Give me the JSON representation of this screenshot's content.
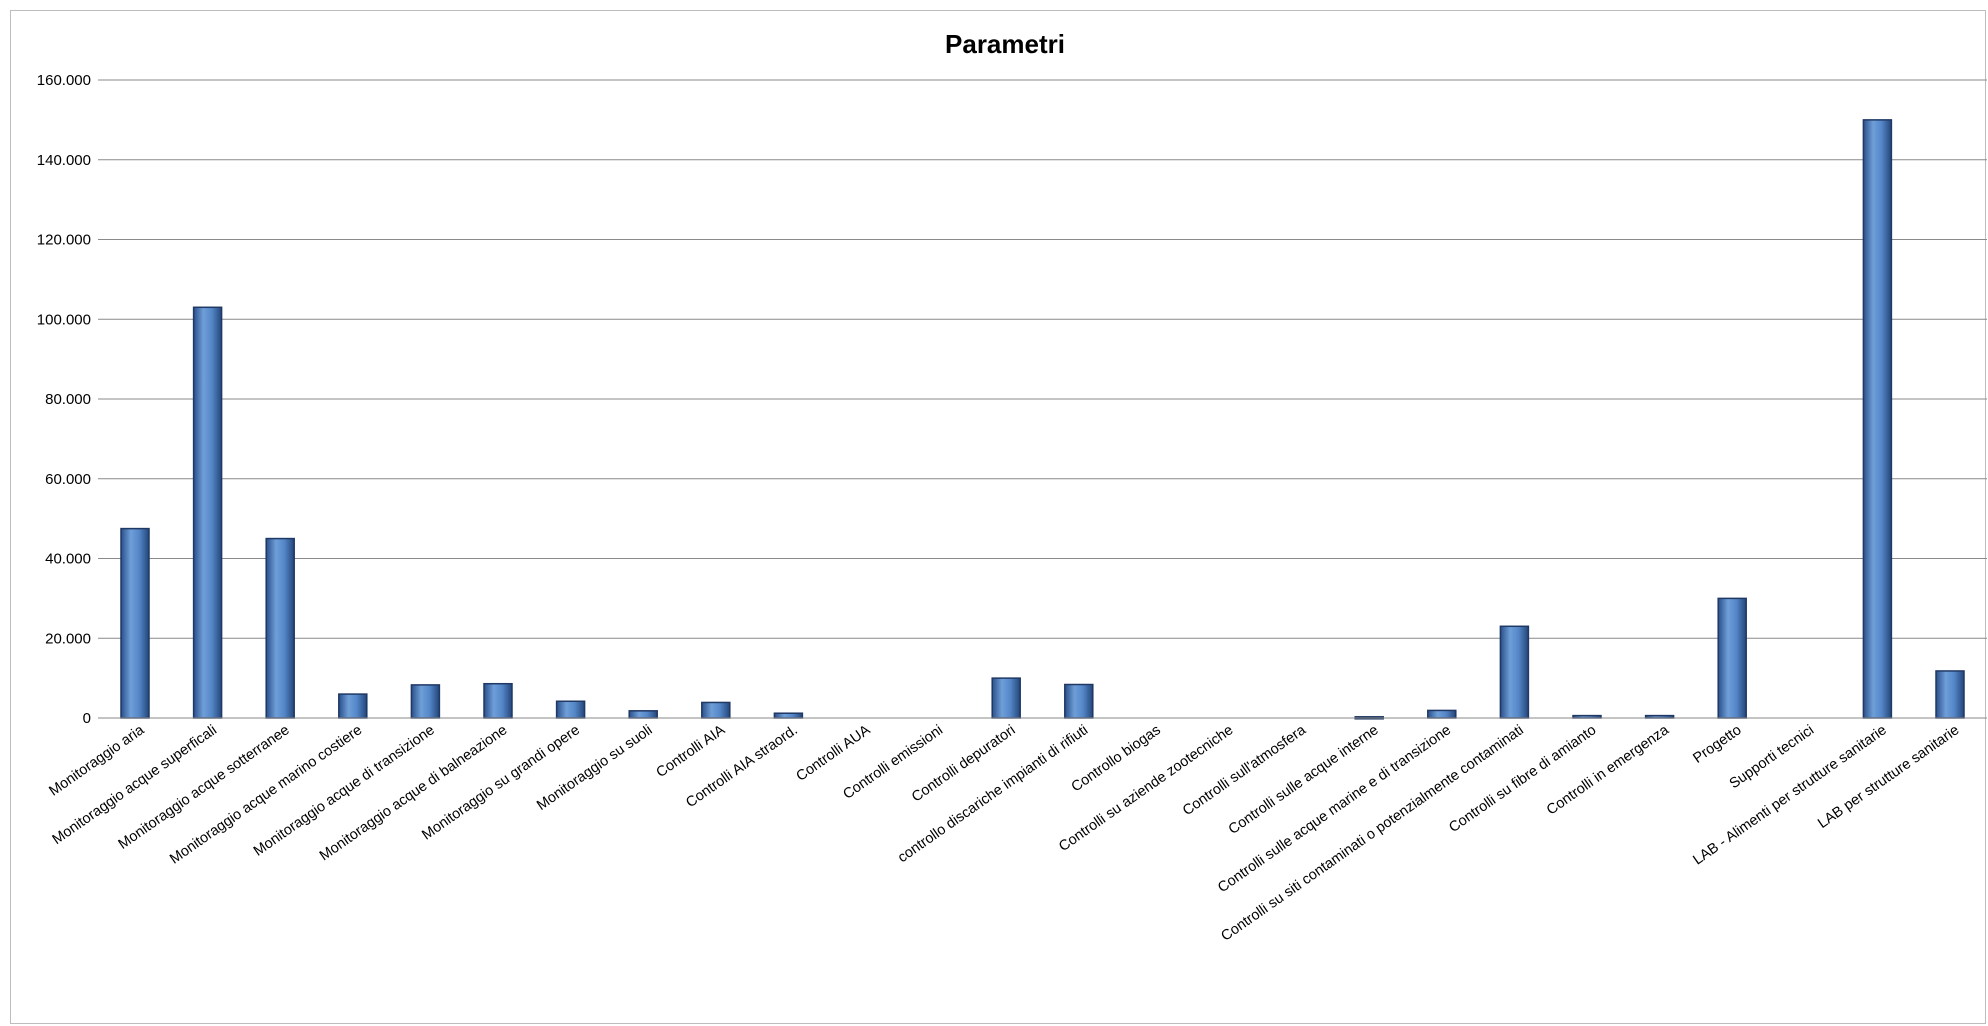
{
  "chart_data": {
    "type": "bar",
    "title": "Parametri",
    "xlabel": "",
    "ylabel": "",
    "ylim": [
      0,
      160000
    ],
    "y_ticks": [
      0,
      20000,
      40000,
      60000,
      80000,
      100000,
      120000,
      140000,
      160000
    ],
    "y_tick_labels": [
      "0",
      "20.000",
      "40.000",
      "60.000",
      "80.000",
      "100.000",
      "120.000",
      "140.000",
      "160.000"
    ],
    "grid": true,
    "legend": "none",
    "bar_color": "#4a7cc0",
    "bar_edge_color": "#1f3864",
    "categories": [
      "Monitoraggio aria",
      "Monitoraggio acque superficali",
      "Monitoraggio acque sotterranee",
      "Monitoraggio acque marino costiere",
      "Monitoraggio acque di transizione",
      "Monitoraggio acque di balneazione",
      "Monitoraggio su grandi opere",
      "Monitoraggio su suoli",
      "Controlli AIA",
      "Controlli AIA straord.",
      "Controlli AUA",
      "Controlli emissioni",
      "Controlli depuratori",
      "controllo discariche impianti di rifiuti",
      "Controllo biogas",
      "Controlli su aziende zootecniche",
      "Controlli sull'atmosfera",
      "Controlli sulle acque interne",
      "Controlli sulle acque marine e di transizione",
      "Controlli su siti contaminati o potenzialmente contaminati",
      "Controlli su fibre di amianto",
      "Controlli in emergenza",
      "Progetto",
      "Supporti tecnici",
      "LAB - Alimenti per strutture sanitarie",
      "LAB per strutture sanitarie"
    ],
    "values": [
      47500,
      103000,
      45000,
      6000,
      8300,
      8600,
      4200,
      1800,
      3900,
      1200,
      0,
      0,
      10000,
      8400,
      0,
      0,
      0,
      300,
      1900,
      23000,
      600,
      600,
      30000,
      0,
      150000,
      11800
    ]
  }
}
